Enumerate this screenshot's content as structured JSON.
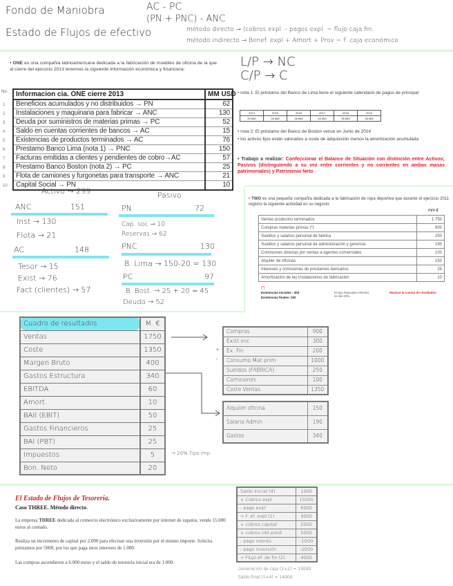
{
  "header_notes": {
    "line1": "Fondo de Maniobra",
    "branch1a": "AC - PC",
    "branch1b": "(PN + PNC) - ANC",
    "line2": "Estado de Flujos de efectivo",
    "branch2a": "método directo → (cobros expl. - pagos expl. = flujo caja fin.",
    "branch2b": "método indirecto → Benef. expl + Amort + Prov = F. caja económico"
  },
  "one": {
    "intro_bold": "ONE",
    "intro": " es una compañía latinoamericana dedicada a la fabricación de muebles de oficina de la que al cierre del ejercicio 2013 tenemos la siguiente información económica y financiera:",
    "no_label": "No.",
    "table_title": "Informacion cia. ONE cierre 2013",
    "unit": "MM USD",
    "rows": [
      {
        "n": "1",
        "label": "Beneficios acumulados y no distribuidos → PN",
        "value": "62"
      },
      {
        "n": "2",
        "label": "Instalaciones y maquinaria para fabricar → ANC",
        "value": "130"
      },
      {
        "n": "3",
        "label": "Deuda por suministros de materias primas → PC",
        "value": "52"
      },
      {
        "n": "4",
        "label": "Saldo en cuentas corrientes de bancos → AC",
        "value": "15"
      },
      {
        "n": "5",
        "label": "Existencias de productos terminados → AC",
        "value": "76"
      },
      {
        "n": "6",
        "label": "Prestamo Banco Lima (nota 1) → PNC",
        "value": "150"
      },
      {
        "n": "7",
        "label": "Facturas emitidas a clientes y pendientes de cobro→AC",
        "value": "57"
      },
      {
        "n": "8",
        "label": "Prestamo Banco Boston (nota 2) → PC",
        "value": "25"
      },
      {
        "n": "9",
        "label": "Flota de camiones y furgonetas para transporte → ANC",
        "value": "21"
      },
      {
        "n": "10",
        "label": "Capital Social → PN",
        "value": "10"
      }
    ],
    "lp": "L/P → NC",
    "cp": "C/P → C",
    "nota1": "nota 1: El préstamo del Banco de Lima tiene el siguiente calendario de pagos de principal",
    "lima_years": [
      "2014",
      "2015",
      "2016",
      "2017",
      "2018",
      "2019"
    ],
    "lima_values": [
      "20 MM",
      "26 MM",
      "26 MM",
      "26 MM",
      "26 MM",
      "26 MM"
    ],
    "nota2": "nota 2: El préstamo del Banco de Boston vence en Junio de 2014",
    "nota3": "los activos fijos están valorados a coste de adquisición menos la amortización acumulada",
    "task_label": "Trabajo a realizar",
    "task": "Confeccionar el Balance de Situación con distinción entre Activos; Pasivos (distinguiendo a su vez entre corrientes y  no corrientes en ambas masas patrimoniales) y Patrimonio Neto"
  },
  "balance": {
    "activo": "Activo → 299",
    "pasivo": "Pasivo",
    "anc": "ANC",
    "anc_v": "151",
    "inst": "Inst → 130",
    "flota": "Flota → 21",
    "ac": "AC",
    "ac_v": "148",
    "tesor": "Tesor → 15",
    "exist": "Exist → 76",
    "fact": "Fact (clientes) → 57",
    "pn": "PN",
    "pn_v": "72",
    "capsoc": "Cap. soc → 10",
    "reservas": "Reservas → 62",
    "pnc": "PNC",
    "pnc_v": "130",
    "blima": "B. Lima → 150-20 = 130",
    "pc": "PC",
    "pc_v": "97",
    "bbost": "B. Bost. → 25 + 20 = 45",
    "deuda": "Deuda → 52"
  },
  "two": {
    "intro_bold": "TWO",
    "intro": " es una pequeña compañía dedicada a la fabricación de ropa deportiva que durante el ejercicio 2011 registro la siguiente actividad en su negocio:",
    "unit": "mm €",
    "rows": [
      {
        "label": "Ventas productos terminados",
        "value": "1.750"
      },
      {
        "label": "Compras materias primas (*)",
        "value": "900"
      },
      {
        "label": "Sueldos y salarios personal de fabrica",
        "value": "250"
      },
      {
        "label": "Sueldos y salarios personal de administración y gerencia",
        "value": "190"
      },
      {
        "label": "Comisiones directas por ventas a agentes comerciales",
        "value": "100"
      },
      {
        "label": "Alquiler de oficinas",
        "value": "150"
      },
      {
        "label": "Intereses y comisiones de prestamos bancarios",
        "value": "25"
      },
      {
        "label": "Amortización de las instalaciones de fabricación",
        "value": "10"
      }
    ],
    "footnote_mark": "(*)",
    "ex_ini": "Existencias iniciales : 300",
    "ex_fin": "Existencias finales: 200",
    "tax": "El tipo impositivo efectivo es del 20%.",
    "task": "Mostrar la cuenta de resultados"
  },
  "resultados": {
    "title": "Cuadro de resultados",
    "unit": "M. €",
    "rows": [
      {
        "label": "Ventas",
        "value": "1750"
      },
      {
        "label": "Coste",
        "value": "1350"
      },
      {
        "label": "Margen Bruto",
        "value": "400"
      },
      {
        "label": "Gastos Estructura",
        "value": "340"
      },
      {
        "label": "EBITDA",
        "value": "60"
      },
      {
        "label": "Amort.",
        "value": "10"
      },
      {
        "label": "BAII (EBIT)",
        "value": "50"
      },
      {
        "label": "Gastos Financieros",
        "value": "25"
      },
      {
        "label": "BAI (PBT)",
        "value": "25"
      },
      {
        "label": "Impuestos",
        "value": "5"
      },
      {
        "label": "Bon. Neto",
        "value": "20"
      }
    ],
    "tax_note": "20% Tipo imp.",
    "coste_rows": [
      {
        "sign": "",
        "label": "Compras",
        "value": "900"
      },
      {
        "sign": "+",
        "label": "Exist inic",
        "value": "300"
      },
      {
        "sign": "-",
        "label": "Ex. Fin",
        "value": "200"
      },
      {
        "sign": "",
        "label": "Consumo Mat prim",
        "value": "1000"
      },
      {
        "sign": "",
        "label": "Sueldos (FABRICA)",
        "value": "250"
      },
      {
        "sign": "",
        "label": "Comisiones",
        "value": "100"
      },
      {
        "sign": "",
        "label": "Coste Ventas",
        "value": "1350"
      }
    ],
    "gastos_rows": [
      {
        "label": "Alquiler oficina",
        "value": "150"
      },
      {
        "label": "Salario Admin",
        "value": "190"
      },
      {
        "label": "Gastos",
        "value": "340"
      }
    ]
  },
  "three": {
    "title": "El Estado de Flujos de Tesorería.",
    "subtitle": "Caso THREE. Método directo.",
    "p1_a": "La empresa ",
    "p1_bold": "THREE",
    "p1_b": " dedicada al comercio electrónico exclusivamente por internet de zapatos, vende 15.000 euros al contado.",
    "p2": "Realiza un incremento de capital por 2.000 para efectuar una inversión por el mismo importe. Solicita préstamos por 5000, por los que paga unos intereses de 1.000.",
    "p3": "Las compras ascendieron a 6.000 euros y el saldo de tesorería inicial era de 1.000.",
    "rows": [
      {
        "label": "Saldo Inicial (4)",
        "value": "1000"
      },
      {
        "label": "+ Cobros expl",
        "value": "15000"
      },
      {
        "label": "- pago expl.",
        "value": "6000"
      },
      {
        "label": "= F. ef. expl (1)",
        "value": "9000"
      },
      {
        "label": "+ cobros capital",
        "value": "2000"
      },
      {
        "label": "+ cobros obt prest",
        "value": "5000"
      },
      {
        "label": "- pago interés",
        "value": "-1000"
      },
      {
        "label": "- pago inversión",
        "value": "-2000"
      },
      {
        "label": "= Flujo ef. de fin (2)",
        "value": "4000"
      }
    ],
    "gen": "Generación de caja (1+2) = 13000",
    "saldo_final": "Saldo final (1+4) = 14000"
  },
  "colors": {
    "highlight_cyan": "#7ee6ef",
    "divider_green": "#d8f8d8",
    "red_text": "#e0202a"
  }
}
